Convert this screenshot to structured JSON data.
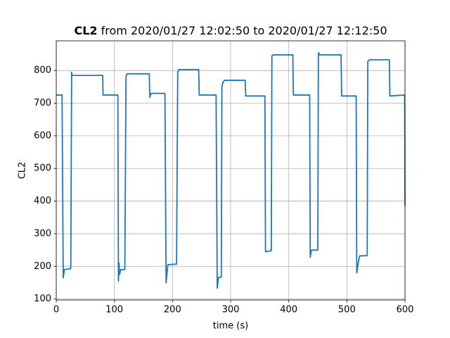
{
  "chart_data": {
    "type": "line",
    "title": [
      "CL2",
      "from 2020/01/27 12:02:50 to 2020/01/27 12:12:50"
    ],
    "xlabel": "time (s)",
    "ylabel": "CL2",
    "x": [
      0,
      10,
      12,
      14,
      25,
      26.5,
      27,
      80,
      80.5,
      106,
      107,
      108,
      109,
      111,
      118,
      120,
      122,
      160,
      161,
      163,
      187,
      189,
      192,
      207,
      209,
      211,
      245,
      246,
      275,
      277,
      279,
      284,
      285,
      287,
      290,
      325,
      326,
      359,
      360,
      370,
      371,
      374,
      407,
      408,
      436,
      437,
      439,
      450,
      451,
      453,
      490,
      491,
      516,
      517,
      520,
      522,
      535,
      536,
      539,
      573,
      574,
      599.5,
      600
    ],
    "series": [
      {
        "color": "#1f77b4",
        "values": [
          725,
          725,
          165,
          190,
          193,
          795,
          785,
          785,
          725,
          725,
          155,
          210,
          175,
          190,
          190,
          780,
          790,
          790,
          718,
          730,
          730,
          150,
          205,
          207,
          795,
          803,
          803,
          725,
          725,
          133,
          165,
          168,
          750,
          765,
          770,
          770,
          722,
          722,
          245,
          248,
          845,
          848,
          848,
          725,
          725,
          228,
          250,
          250,
          855,
          848,
          848,
          722,
          722,
          180,
          215,
          232,
          233,
          828,
          833,
          833,
          722,
          725,
          385
        ]
      }
    ],
    "xlim": [
      0,
      600
    ],
    "xticks": [
      0,
      100,
      200,
      300,
      400,
      500,
      600
    ],
    "ylim": [
      97,
      891
    ],
    "yticks": [
      100,
      200,
      300,
      400,
      500,
      600,
      700,
      800
    ],
    "grid": true
  }
}
